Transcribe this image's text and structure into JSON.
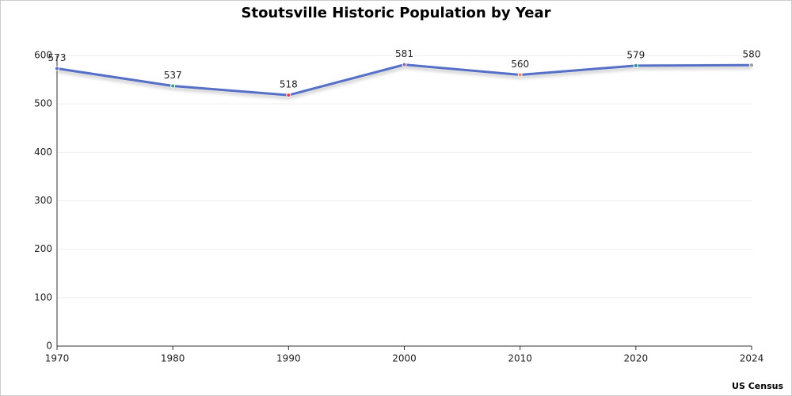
{
  "chart_data": {
    "type": "line",
    "title": "Stoutsville Historic Population by Year",
    "source": "US Census",
    "categories": [
      "1970",
      "1980",
      "1990",
      "2000",
      "2010",
      "2020",
      "2024"
    ],
    "values": [
      573,
      537,
      518,
      581,
      560,
      579,
      580
    ],
    "color": "#5470c6",
    "point_colors": [
      "#5470c6",
      "#3ba272",
      "#ee3a4a",
      "#9a60b4",
      "#fc8452",
      "#1a9a8a",
      "#999999"
    ],
    "ylim": [
      0,
      600
    ],
    "yticks": [
      0,
      100,
      200,
      300,
      400,
      500,
      600
    ],
    "grid": true
  }
}
